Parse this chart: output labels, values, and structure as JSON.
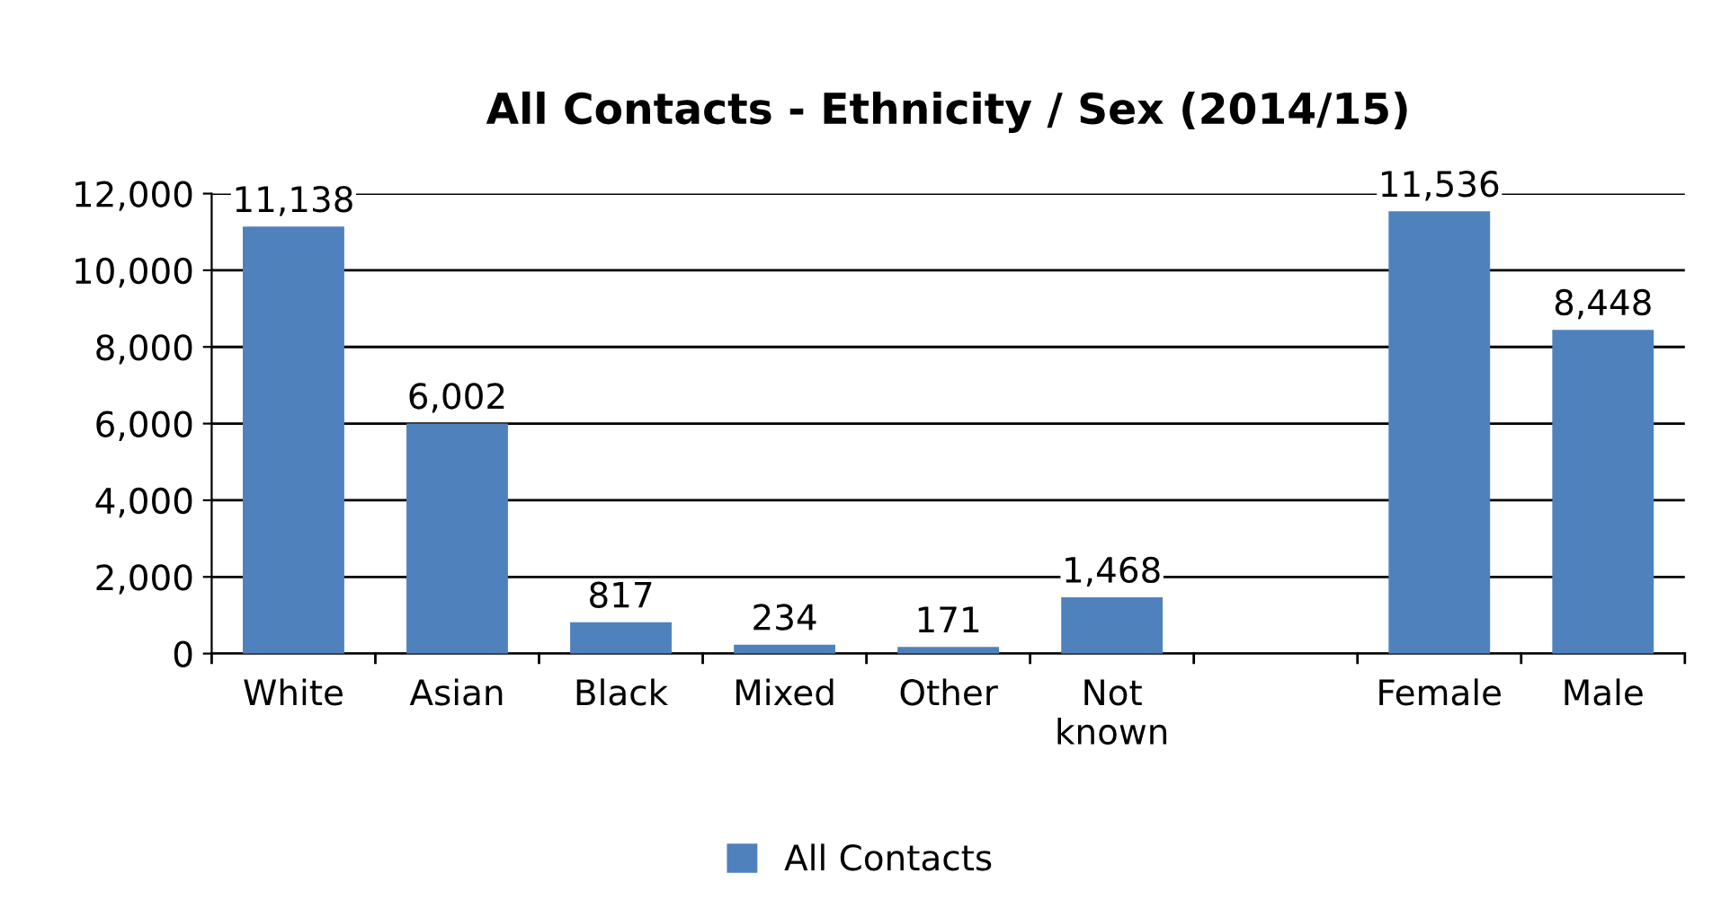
{
  "chart_data": {
    "type": "bar",
    "title": "All Contacts - Ethnicity / Sex (2014/15)",
    "categories": [
      "White",
      "Asian",
      "Black",
      "Mixed",
      "Other",
      "Not\nknown",
      null,
      "Female",
      "Male"
    ],
    "series": [
      {
        "name": "All Contacts",
        "color": "#4f81bd",
        "values": [
          11138,
          6002,
          817,
          234,
          171,
          1468,
          null,
          11536,
          8448
        ],
        "value_labels": [
          "11,138",
          "6,002",
          "817",
          "234",
          "171",
          "1,468",
          null,
          "11,536",
          "8,448"
        ]
      }
    ],
    "ylim": [
      0,
      12000
    ],
    "yticks": [
      {
        "value": 0,
        "label": "0"
      },
      {
        "value": 2000,
        "label": "2,000"
      },
      {
        "value": 4000,
        "label": "4,000"
      },
      {
        "value": 6000,
        "label": "6,000"
      },
      {
        "value": 8000,
        "label": "8,000"
      },
      {
        "value": 10000,
        "label": "10,000"
      },
      {
        "value": 12000,
        "label": "12,000"
      }
    ],
    "grid": "y",
    "legend": "bottom"
  }
}
